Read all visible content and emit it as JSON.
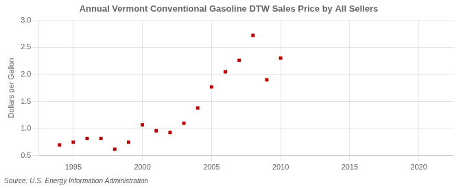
{
  "chart_data": {
    "type": "scatter",
    "title": "Annual Vermont Conventional Gasoline DTW Sales Price by All Sellers",
    "ylabel": "Dollars per Gallon",
    "annotations": [
      "Source: U.S. Energy Information Administration"
    ],
    "x": [
      1994,
      1995,
      1996,
      1997,
      1998,
      1999,
      2000,
      2001,
      2002,
      2003,
      2004,
      2005,
      2006,
      2007,
      2008,
      2009,
      2010
    ],
    "values": [
      0.7,
      0.75,
      0.82,
      0.82,
      0.62,
      0.75,
      1.07,
      0.96,
      0.93,
      1.1,
      1.38,
      1.77,
      2.05,
      2.26,
      2.72,
      1.9,
      2.3
    ],
    "color": "#bb0000",
    "marker": "square",
    "xlim": [
      1992.5,
      2022.5
    ],
    "xticks": [
      1995,
      2000,
      2005,
      2010,
      2015,
      2020
    ],
    "ylim": [
      0.5,
      3.0
    ],
    "yticks": [
      0.5,
      {
        "value": 1.0,
        "label": "1.0"
      },
      1.5,
      {
        "value": 2.0,
        "label": "2.0"
      },
      2.5,
      {
        "value": 3.0,
        "label": "3.0"
      }
    ],
    "grid": true
  }
}
